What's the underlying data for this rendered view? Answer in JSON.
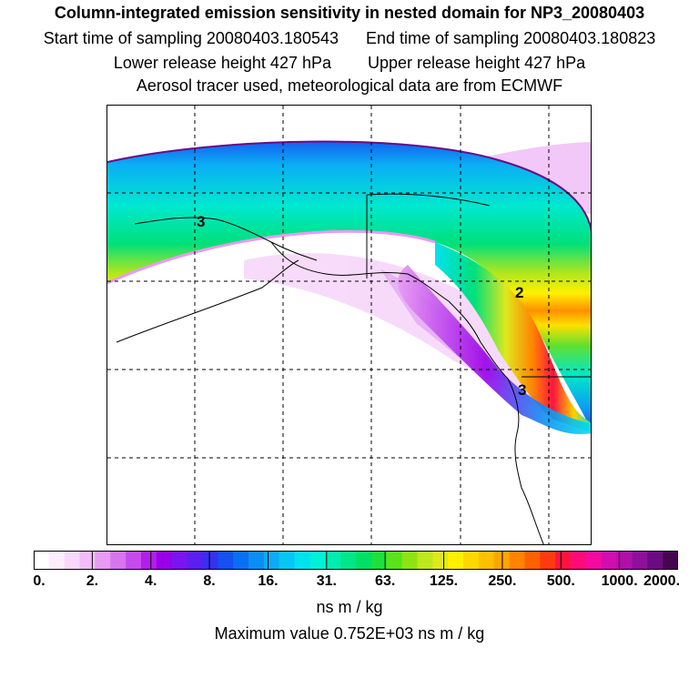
{
  "header": {
    "title": "Column-integrated emission sensitivity in nested domain for NP3_20080403",
    "start": "Start time of sampling 20080403.180543",
    "end": "End time of sampling 20080403.180823",
    "lower": "Lower release height  427 hPa",
    "upper": "Upper release height  427 hPa",
    "aerosol": "Aerosol tracer used, meteorological data are from ECMWF"
  },
  "map": {
    "contour_labels": [
      "3",
      "2",
      "3"
    ]
  },
  "colorbar": {
    "tick_labels": [
      "0.",
      "2.",
      "4.",
      "8.",
      "16.",
      "31.",
      "63.",
      "125.",
      "250.",
      "500.",
      "1000.",
      "2000."
    ],
    "colors": [
      "#ffffff",
      "#fdeefd",
      "#f9d8fb",
      "#f2bdf7",
      "#e79bf2",
      "#d775ef",
      "#c74bec",
      "#b21ee9",
      "#9a00e8",
      "#7a14f0",
      "#5b1ff2",
      "#3630f0",
      "#1550f0",
      "#0b6ff2",
      "#0b8ef4",
      "#0babf5",
      "#08c6f3",
      "#00e1f0",
      "#00f0d8",
      "#00edb2",
      "#00e68b",
      "#00e065",
      "#1ee03d",
      "#5ae21b",
      "#8ee413",
      "#bde81e",
      "#dfe81e",
      "#fff000",
      "#ffd800",
      "#ffc000",
      "#ffa400",
      "#ff8400",
      "#ff6000",
      "#ff3a10",
      "#ff1440",
      "#ff0a78",
      "#f30aa0",
      "#d20cb0",
      "#b010a8",
      "#8e109a",
      "#6a0c80",
      "#46064f"
    ]
  },
  "units": "ns m / kg",
  "max_value": "Maximum value  0.752E+03 ns m / kg"
}
